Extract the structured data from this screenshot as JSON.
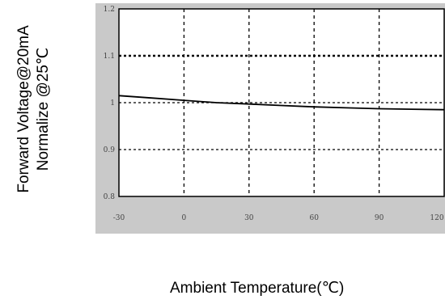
{
  "chart_data": {
    "type": "line",
    "ylabel_lines": [
      "Forward Voltage@20mA",
      "Normalize @25℃"
    ],
    "xlabel": "Ambient Temperature(℃)",
    "x_ticks": [
      "-30",
      "0",
      "30",
      "60",
      "90",
      "120"
    ],
    "y_ticks": [
      "1.2",
      "1.1",
      "1",
      "0.9",
      "0.8"
    ],
    "xlim": [
      -30,
      120
    ],
    "ylim": [
      0.8,
      1.2
    ],
    "grid": true,
    "series": [
      {
        "x": [
          -30,
          -15,
          0,
          15,
          30,
          45,
          60,
          75,
          90,
          105,
          120
        ],
        "values": [
          1.015,
          1.01,
          1.005,
          1.0,
          0.997,
          0.994,
          0.991,
          0.989,
          0.987,
          0.986,
          0.985
        ]
      }
    ],
    "colors": {
      "plot_bg": "#c9c9c9",
      "inner_bg": "#ffffff",
      "line": "#000000"
    }
  }
}
